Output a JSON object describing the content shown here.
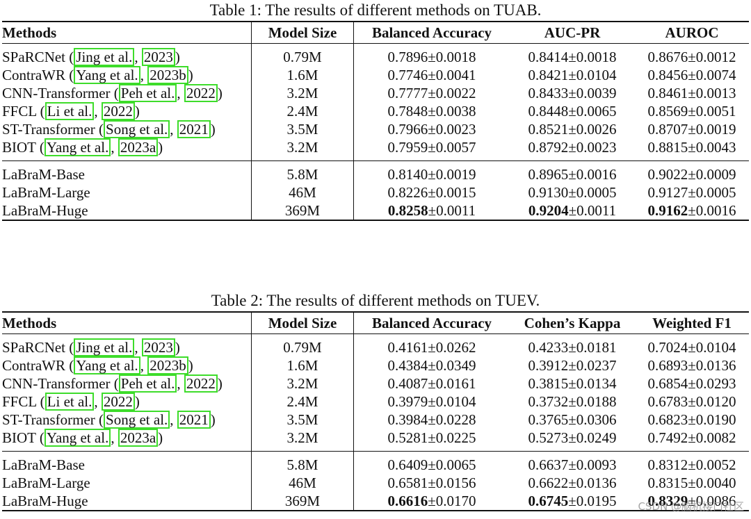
{
  "watermark": "CSDN @脑机接口社区",
  "tables": [
    {
      "caption": "Table 1: The results of different methods on TUAB.",
      "headers": [
        "Methods",
        "Model Size",
        "Balanced Accuracy",
        "AUC-PR",
        "AUROC"
      ],
      "baseline_rows": [
        {
          "name": "SPaRCNet",
          "cite_author": "Jing et al.",
          "cite_year": "2023",
          "size": "0.79M",
          "m1": "0.7896±0.0018",
          "m2": "0.8414±0.0018",
          "m3": "0.8676±0.0012"
        },
        {
          "name": "ContraWR",
          "cite_author": "Yang et al.",
          "cite_year": "2023b",
          "size": "1.6M",
          "m1": "0.7746±0.0041",
          "m2": "0.8421±0.0104",
          "m3": "0.8456±0.0074"
        },
        {
          "name": "CNN-Transformer",
          "cite_author": "Peh et al.",
          "cite_year": "2022",
          "size": "3.2M",
          "m1": "0.7777±0.0022",
          "m2": "0.8433±0.0039",
          "m3": "0.8461±0.0013"
        },
        {
          "name": "FFCL",
          "cite_author": "Li et al.",
          "cite_year": "2022",
          "size": "2.4M",
          "m1": "0.7848±0.0038",
          "m2": "0.8448±0.0065",
          "m3": "0.8569±0.0051"
        },
        {
          "name": "ST-Transformer",
          "cite_author": "Song et al.",
          "cite_year": "2021",
          "size": "3.5M",
          "m1": "0.7966±0.0023",
          "m2": "0.8521±0.0026",
          "m3": "0.8707±0.0019"
        },
        {
          "name": "BIOT",
          "cite_author": "Yang et al.",
          "cite_year": "2023a",
          "size": "3.2M",
          "m1": "0.7959±0.0057",
          "m2": "0.8792±0.0023",
          "m3": "0.8815±0.0043"
        }
      ],
      "labram_rows": [
        {
          "name": "LaBraM-Base",
          "size": "5.8M",
          "m1_a": "0.8140",
          "m1_b": "±0.0019",
          "m2_a": "0.8965",
          "m2_b": "±0.0016",
          "m3_a": "0.9022",
          "m3_b": "±0.0009"
        },
        {
          "name": "LaBraM-Large",
          "size": "46M",
          "m1_a": "0.8226",
          "m1_b": "±0.0015",
          "m2_a": "0.9130",
          "m2_b": "±0.0005",
          "m3_a": "0.9127",
          "m3_b": "±0.0005"
        },
        {
          "name": "LaBraM-Huge",
          "size": "369M",
          "m1_a": "0.8258",
          "m1_b": "±0.0011",
          "m2_a": "0.9204",
          "m2_b": "±0.0011",
          "m3_a": "0.9162",
          "m3_b": "±0.0016"
        }
      ]
    },
    {
      "caption": "Table 2: The results of different methods on TUEV.",
      "headers": [
        "Methods",
        "Model Size",
        "Balanced Accuracy",
        "Cohen’s Kappa",
        "Weighted F1"
      ],
      "baseline_rows": [
        {
          "name": "SPaRCNet",
          "cite_author": "Jing et al.",
          "cite_year": "2023",
          "size": "0.79M",
          "m1": "0.4161±0.0262",
          "m2": "0.4233±0.0181",
          "m3": "0.7024±0.0104"
        },
        {
          "name": "ContraWR",
          "cite_author": "Yang et al.",
          "cite_year": "2023b",
          "size": "1.6M",
          "m1": "0.4384±0.0349",
          "m2": "0.3912±0.0237",
          "m3": "0.6893±0.0136"
        },
        {
          "name": "CNN-Transformer",
          "cite_author": "Peh et al.",
          "cite_year": "2022",
          "size": "3.2M",
          "m1": "0.4087±0.0161",
          "m2": "0.3815±0.0134",
          "m3": "0.6854±0.0293"
        },
        {
          "name": "FFCL",
          "cite_author": "Li et al.",
          "cite_year": "2022",
          "size": "2.4M",
          "m1": "0.3979±0.0104",
          "m2": "0.3732±0.0188",
          "m3": "0.6783±0.0120"
        },
        {
          "name": "ST-Transformer",
          "cite_author": "Song et al.",
          "cite_year": "2021",
          "size": "3.5M",
          "m1": "0.3984±0.0228",
          "m2": "0.3765±0.0306",
          "m3": "0.6823±0.0190"
        },
        {
          "name": "BIOT",
          "cite_author": "Yang et al.",
          "cite_year": "2023a",
          "size": "3.2M",
          "m1": "0.5281±0.0225",
          "m2": "0.5273±0.0249",
          "m3": "0.7492±0.0082"
        }
      ],
      "labram_rows": [
        {
          "name": "LaBraM-Base",
          "size": "5.8M",
          "m1_a": "0.6409",
          "m1_b": "±0.0065",
          "m2_a": "0.6637",
          "m2_b": "±0.0093",
          "m3_a": "0.8312",
          "m3_b": "±0.0052"
        },
        {
          "name": "LaBraM-Large",
          "size": "46M",
          "m1_a": "0.6581",
          "m1_b": "±0.0156",
          "m2_a": "0.6622",
          "m2_b": "±0.0136",
          "m3_a": "0.8315",
          "m3_b": "±0.0040"
        },
        {
          "name": "LaBraM-Huge",
          "size": "369M",
          "m1_a": "0.6616",
          "m1_b": "±0.0170",
          "m2_a": "0.6745",
          "m2_b": "±0.0195",
          "m3_a": "0.8329",
          "m3_b": "±0.0086"
        }
      ]
    }
  ]
}
